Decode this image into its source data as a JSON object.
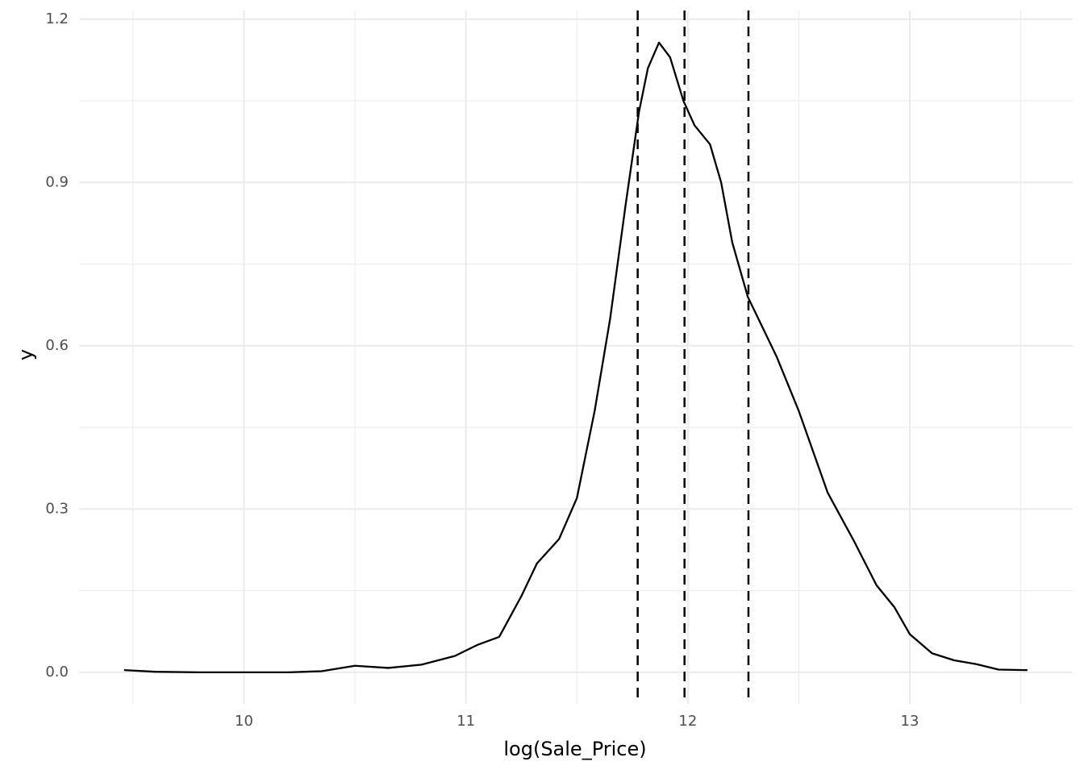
{
  "chart_data": {
    "type": "line",
    "x_label": "log(Sale_Price)",
    "y_label": "y",
    "x": [
      9.46,
      9.6,
      9.8,
      10.0,
      10.2,
      10.35,
      10.5,
      10.65,
      10.8,
      10.95,
      11.05,
      11.15,
      11.25,
      11.32,
      11.42,
      11.5,
      11.58,
      11.65,
      11.72,
      11.78,
      11.82,
      11.87,
      11.92,
      11.98,
      12.03,
      12.1,
      12.15,
      12.2,
      12.27,
      12.4,
      12.5,
      12.63,
      12.75,
      12.85,
      12.93,
      13.0,
      13.1,
      13.2,
      13.3,
      13.4,
      13.53
    ],
    "series": [
      {
        "color": "#000000",
        "values": [
          0.004,
          0.001,
          0,
          0,
          0,
          0.002,
          0.012,
          0.008,
          0.014,
          0.03,
          0.05,
          0.065,
          0.14,
          0.2,
          0.245,
          0.32,
          0.48,
          0.65,
          0.86,
          1.03,
          1.11,
          1.157,
          1.13,
          1.05,
          1.005,
          0.97,
          0.9,
          0.79,
          0.69,
          0.58,
          0.48,
          0.33,
          0.24,
          0.16,
          0.12,
          0.07,
          0.035,
          0.022,
          0.015,
          0.005,
          0.004
        ]
      }
    ],
    "reference_lines": [
      11.774,
      11.985,
      12.273
    ],
    "xlim": [
      9.257,
      13.734
    ],
    "ylim": [
      -0.058,
      1.216
    ],
    "xticks": [
      10,
      11,
      12,
      13
    ],
    "yticks": [
      {
        "value": 0,
        "label": "0.0"
      },
      0.3,
      0.6,
      0.9,
      1.2
    ],
    "x_minor_ticks": [
      9.5,
      10.5,
      11.5,
      12.5,
      13.5
    ],
    "y_minor_ticks": [
      0.15,
      0.45,
      0.75,
      1.05
    ],
    "grid": true
  }
}
